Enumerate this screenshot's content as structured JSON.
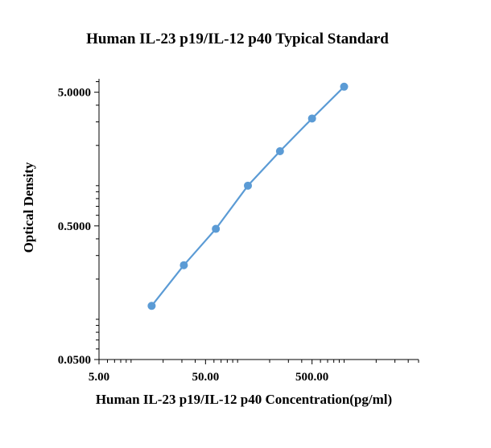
{
  "chart_data": {
    "type": "line",
    "title": "Human IL-23 p19/IL-12 p40 Typical Standard",
    "xlabel": "Human IL-23 p19/IL-12 p40 Concentration(pg/ml)",
    "ylabel": "Optical Density",
    "x_scale": "log",
    "y_scale": "log",
    "xlim": [
      5,
      5000
    ],
    "ylim": [
      0.05,
      6.3
    ],
    "x_ticks": [
      "5.00",
      "50.00",
      "500.00"
    ],
    "x_tick_values": [
      5,
      50,
      500
    ],
    "y_ticks": [
      "5.0000",
      "0.5000",
      "0.0500"
    ],
    "y_tick_values": [
      5,
      0.5,
      0.05
    ],
    "grid": false,
    "legend": "none",
    "series": [
      {
        "color": "#5B9BD5",
        "x": [
          15.6,
          31.3,
          62.5,
          125,
          250,
          500,
          1000
        ],
        "y": [
          0.126,
          0.254,
          0.475,
          1.0,
          1.81,
          3.18,
          5.5
        ]
      }
    ]
  }
}
